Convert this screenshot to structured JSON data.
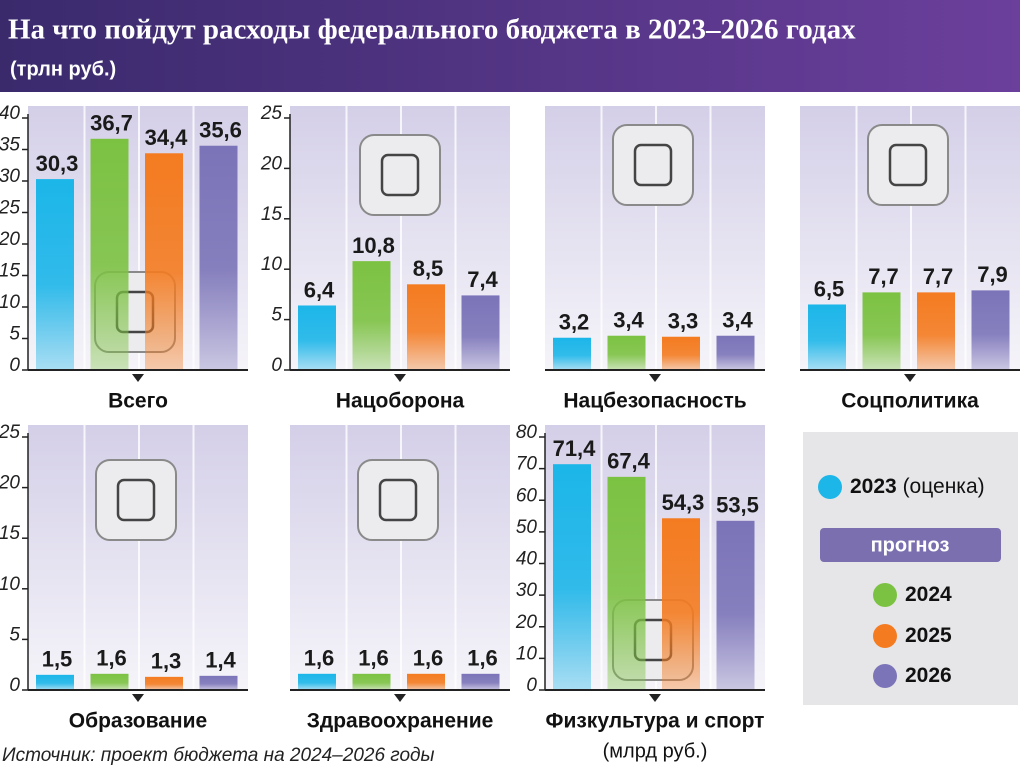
{
  "header": {
    "title": "На что пойдут расходы федерального бюджета в 2023–2026 годах",
    "subtitle": "(трлн руб.)"
  },
  "source": "Источник: проект бюджета на 2024–2026 годы",
  "legend": {
    "series": [
      {
        "name": "2023",
        "note": "(оценка)",
        "color": "#1cb6e9"
      },
      {
        "name": "2024",
        "color": "#7cc242"
      },
      {
        "name": "2025",
        "color": "#f47b20"
      },
      {
        "name": "2026",
        "color": "#7b74b8"
      }
    ],
    "forecast_label": "прогноз"
  },
  "chart_data": [
    {
      "type": "bar",
      "title": "Всего",
      "values": [
        30.3,
        36.7,
        34.4,
        35.6
      ],
      "value_labels": [
        "30,3",
        "36,7",
        "34,4",
        "35,6"
      ],
      "ylim": [
        0,
        40
      ],
      "yticks": [
        0,
        5,
        10,
        15,
        20,
        25,
        30,
        35,
        40
      ]
    },
    {
      "type": "bar",
      "title": "Нацоборона",
      "values": [
        6.4,
        10.8,
        8.5,
        7.4
      ],
      "value_labels": [
        "6,4",
        "10,8",
        "8,5",
        "7,4"
      ],
      "ylim": [
        0,
        25
      ],
      "yticks": [
        0,
        5,
        10,
        15,
        20,
        25
      ]
    },
    {
      "type": "bar",
      "title": "Нацбезопасность",
      "values": [
        3.2,
        3.4,
        3.3,
        3.4
      ],
      "value_labels": [
        "3,2",
        "3,4",
        "3,3",
        "3,4"
      ],
      "ylim": [
        0,
        25
      ]
    },
    {
      "type": "bar",
      "title": "Соцполитика",
      "values": [
        6.5,
        7.7,
        7.7,
        7.9
      ],
      "value_labels": [
        "6,5",
        "7,7",
        "7,7",
        "7,9"
      ],
      "ylim": [
        0,
        25
      ]
    },
    {
      "type": "bar",
      "title": "Образование",
      "values": [
        1.5,
        1.6,
        1.3,
        1.4
      ],
      "value_labels": [
        "1,5",
        "1,6",
        "1,3",
        "1,4"
      ],
      "ylim": [
        0,
        25
      ],
      "yticks": [
        0,
        5,
        10,
        15,
        20,
        25
      ]
    },
    {
      "type": "bar",
      "title": "Здравоохранение",
      "values": [
        1.6,
        1.6,
        1.6,
        1.6
      ],
      "value_labels": [
        "1,6",
        "1,6",
        "1,6",
        "1,6"
      ],
      "ylim": [
        0,
        25
      ]
    },
    {
      "type": "bar",
      "title": "Физкультура и спорт",
      "note": "(млрд руб.)",
      "values": [
        71.4,
        67.4,
        54.3,
        53.5
      ],
      "value_labels": [
        "71,4",
        "67,4",
        "54,3",
        "53,5"
      ],
      "ylim": [
        0,
        80
      ],
      "yticks": [
        0,
        10,
        20,
        30,
        40,
        50,
        60,
        70,
        80
      ]
    }
  ]
}
